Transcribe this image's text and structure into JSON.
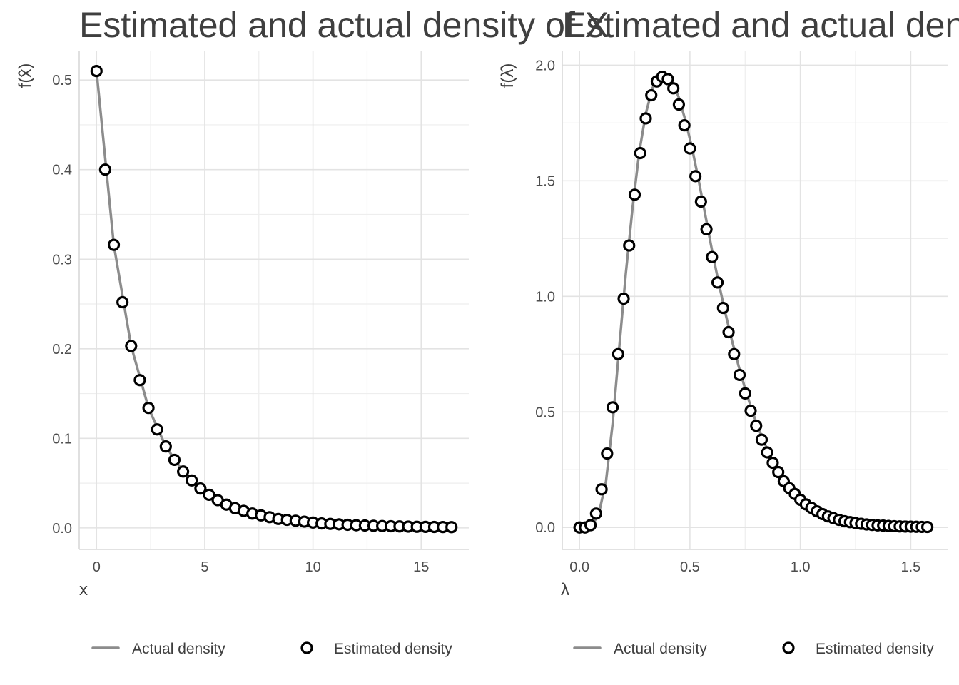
{
  "chart_data": [
    {
      "type": "line",
      "title": "Estimated and actual density of X",
      "xlabel": "x",
      "ylabel": "f(x̂)",
      "xlim": [
        -0.8,
        17.2
      ],
      "ylim": [
        -0.024,
        0.532
      ],
      "x_ticks": [
        "0",
        "5",
        "10",
        "15"
      ],
      "x_tick_values": [
        0,
        5,
        10,
        15
      ],
      "y_ticks": [
        "0.0",
        "0.1",
        "0.2",
        "0.3",
        "0.4",
        "0.5"
      ],
      "y_tick_values": [
        0,
        0.1,
        0.2,
        0.3,
        0.4,
        0.5
      ],
      "grid": true,
      "legend_position": "bottom",
      "series": [
        {
          "name": "Actual density",
          "style": "line",
          "color": "#8c8c8c",
          "x": [
            0,
            0.8,
            1.6,
            2.4,
            3.2,
            4,
            4.8,
            5.6,
            6.4,
            7.2,
            8,
            9,
            10,
            11,
            12,
            13,
            14,
            15,
            16.3
          ],
          "y": [
            0.51,
            0.316,
            0.203,
            0.134,
            0.091,
            0.063,
            0.044,
            0.031,
            0.022,
            0.016,
            0.012,
            0.008,
            0.006,
            0.004,
            0.003,
            0.002,
            0.002,
            0.001,
            0.001
          ]
        },
        {
          "name": "Estimated density",
          "style": "points",
          "color": "#000000",
          "x": [
            0,
            0.4,
            0.8,
            1.2,
            1.6,
            2.0,
            2.4,
            2.8,
            3.2,
            3.6,
            4.0,
            4.4,
            4.8,
            5.2,
            5.6,
            6.0,
            6.4,
            6.8,
            7.2,
            7.6,
            8.0,
            8.4,
            8.8,
            9.2,
            9.6,
            10.0,
            10.4,
            10.8,
            11.2,
            11.6,
            12.0,
            12.4,
            12.8,
            13.2,
            13.6,
            14.0,
            14.4,
            14.8,
            15.2,
            15.6,
            16.0,
            16.4
          ],
          "y": [
            0.51,
            0.4,
            0.316,
            0.252,
            0.203,
            0.165,
            0.134,
            0.11,
            0.091,
            0.076,
            0.063,
            0.053,
            0.044,
            0.037,
            0.031,
            0.026,
            0.022,
            0.019,
            0.016,
            0.014,
            0.012,
            0.01,
            0.009,
            0.008,
            0.007,
            0.006,
            0.005,
            0.0045,
            0.004,
            0.0035,
            0.003,
            0.0027,
            0.0024,
            0.0021,
            0.0019,
            0.0017,
            0.0015,
            0.0013,
            0.0012,
            0.0011,
            0.001,
            0.0009
          ]
        }
      ]
    },
    {
      "type": "line",
      "title": "Estimated and actual density of Λ",
      "xlabel": "λ",
      "ylabel": "f(λ̂)",
      "xlim": [
        -0.078,
        1.67
      ],
      "ylim": [
        -0.095,
        2.06
      ],
      "x_ticks": [
        "0.0",
        "0.5",
        "1.0",
        "1.5"
      ],
      "x_tick_values": [
        0,
        0.5,
        1.0,
        1.5
      ],
      "y_ticks": [
        "0.0",
        "0.5",
        "1.0",
        "1.5",
        "2.0"
      ],
      "y_tick_values": [
        0,
        0.5,
        1.0,
        1.5,
        2.0
      ],
      "grid": true,
      "legend_position": "bottom",
      "series": [
        {
          "name": "Actual density",
          "style": "line",
          "color": "#8c8c8c",
          "x": [
            0,
            0.03,
            0.06,
            0.09,
            0.12,
            0.15,
            0.18,
            0.21,
            0.24,
            0.27,
            0.3,
            0.33,
            0.36,
            0.39,
            0.42,
            0.45,
            0.48,
            0.51,
            0.54,
            0.57,
            0.6,
            0.63,
            0.66,
            0.69,
            0.72,
            0.75,
            0.78,
            0.81,
            0.84,
            0.87,
            0.9,
            0.95,
            1.0,
            1.05,
            1.1,
            1.2,
            1.3,
            1.4,
            1.5,
            1.58
          ],
          "y": [
            0,
            0.0,
            0.01,
            0.07,
            0.2,
            0.45,
            0.78,
            1.1,
            1.38,
            1.62,
            1.79,
            1.9,
            1.95,
            1.96,
            1.93,
            1.86,
            1.76,
            1.64,
            1.5,
            1.35,
            1.2,
            1.06,
            0.93,
            0.81,
            0.7,
            0.6,
            0.51,
            0.43,
            0.36,
            0.3,
            0.25,
            0.18,
            0.13,
            0.09,
            0.065,
            0.033,
            0.017,
            0.009,
            0.005,
            0.003
          ]
        },
        {
          "name": "Estimated density",
          "style": "points",
          "color": "#000000",
          "x": [
            0.0,
            0.025,
            0.05,
            0.075,
            0.1,
            0.125,
            0.15,
            0.175,
            0.2,
            0.225,
            0.25,
            0.275,
            0.3,
            0.325,
            0.35,
            0.375,
            0.4,
            0.425,
            0.45,
            0.475,
            0.5,
            0.525,
            0.55,
            0.575,
            0.6,
            0.625,
            0.65,
            0.675,
            0.7,
            0.725,
            0.75,
            0.775,
            0.8,
            0.825,
            0.85,
            0.875,
            0.9,
            0.925,
            0.95,
            0.975,
            1.0,
            1.025,
            1.05,
            1.075,
            1.1,
            1.125,
            1.15,
            1.175,
            1.2,
            1.225,
            1.25,
            1.275,
            1.3,
            1.325,
            1.35,
            1.375,
            1.4,
            1.425,
            1.45,
            1.475,
            1.5,
            1.525,
            1.55,
            1.575
          ],
          "y": [
            0.0,
            0.0,
            0.01,
            0.06,
            0.165,
            0.32,
            0.52,
            0.75,
            0.99,
            1.22,
            1.44,
            1.62,
            1.77,
            1.87,
            1.93,
            1.95,
            1.94,
            1.9,
            1.83,
            1.74,
            1.64,
            1.52,
            1.41,
            1.29,
            1.17,
            1.06,
            0.95,
            0.845,
            0.75,
            0.66,
            0.58,
            0.505,
            0.44,
            0.38,
            0.325,
            0.28,
            0.24,
            0.2,
            0.17,
            0.145,
            0.12,
            0.1,
            0.085,
            0.07,
            0.058,
            0.048,
            0.04,
            0.033,
            0.027,
            0.023,
            0.019,
            0.016,
            0.013,
            0.011,
            0.009,
            0.008,
            0.0065,
            0.0055,
            0.0045,
            0.004,
            0.0035,
            0.003,
            0.0025,
            0.002
          ]
        }
      ]
    }
  ]
}
